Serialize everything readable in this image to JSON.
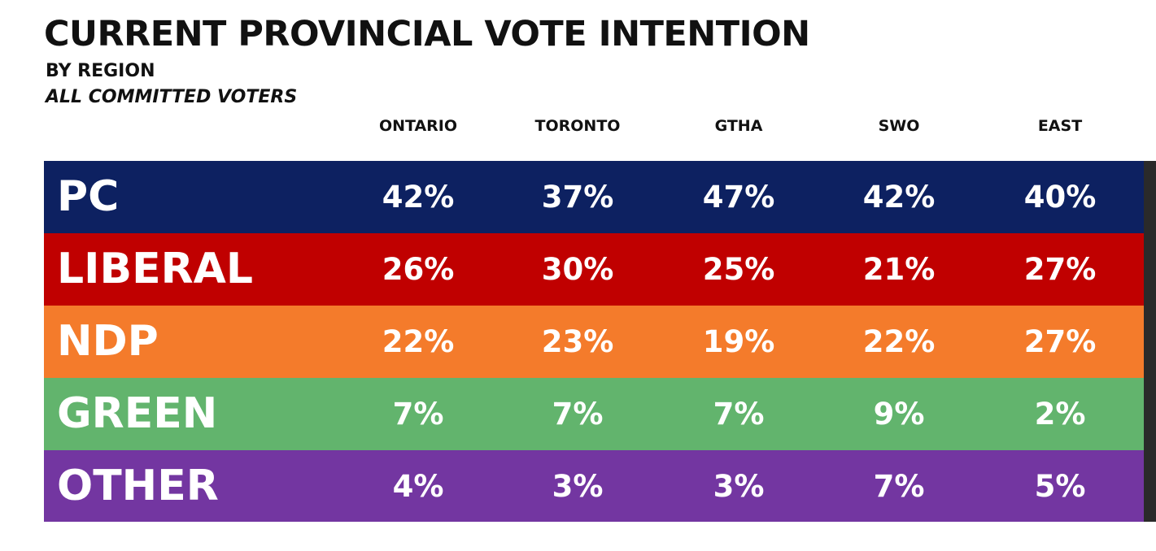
{
  "header": {
    "title": "CURRENT PROVINCIAL VOTE INTENTION",
    "subtitle": "BY REGION",
    "subtitle2": "ALL COMMITTED VOTERS"
  },
  "columns": [
    "ONTARIO",
    "TORONTO",
    "GTHA",
    "SWO",
    "EAST"
  ],
  "rows": [
    {
      "party": "PC",
      "color": "#0d2161",
      "values": [
        "42%",
        "37%",
        "47%",
        "42%",
        "40%"
      ]
    },
    {
      "party": "LIBERAL",
      "color": "#c00000",
      "values": [
        "26%",
        "30%",
        "25%",
        "21%",
        "27%"
      ]
    },
    {
      "party": "NDP",
      "color": "#f47b2b",
      "values": [
        "22%",
        "23%",
        "19%",
        "22%",
        "27%"
      ]
    },
    {
      "party": "GREEN",
      "color": "#62b46d",
      "values": [
        "7%",
        "7%",
        "7%",
        "9%",
        "2%"
      ]
    },
    {
      "party": "OTHER",
      "color": "#7336a1",
      "values": [
        "4%",
        "3%",
        "3%",
        "7%",
        "5%"
      ]
    }
  ],
  "chart_data": {
    "type": "table",
    "title": "CURRENT PROVINCIAL VOTE INTENTION",
    "subtitle": "BY REGION",
    "categories": [
      "ONTARIO",
      "TORONTO",
      "GTHA",
      "SWO",
      "EAST"
    ],
    "series": [
      {
        "name": "PC",
        "values": [
          42,
          37,
          47,
          42,
          40
        ]
      },
      {
        "name": "LIBERAL",
        "values": [
          26,
          30,
          25,
          21,
          27
        ]
      },
      {
        "name": "NDP",
        "values": [
          22,
          23,
          19,
          22,
          27
        ]
      },
      {
        "name": "GREEN",
        "values": [
          7,
          7,
          7,
          9,
          2
        ]
      },
      {
        "name": "OTHER",
        "values": [
          4,
          3,
          3,
          7,
          5
        ]
      }
    ]
  }
}
